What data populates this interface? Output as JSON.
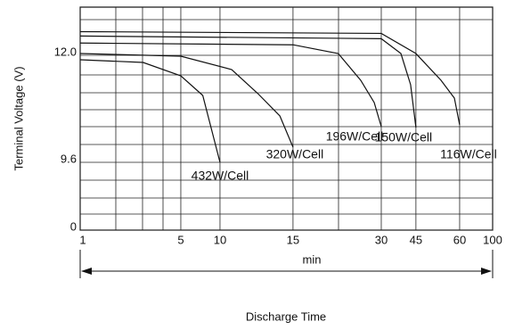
{
  "chart_data": {
    "type": "line",
    "y_label": "Terminal Voltage (V)",
    "x_label": "Discharge Time",
    "x_unit": "min",
    "xlim": [
      1,
      100
    ],
    "xticks": [
      1,
      5,
      10,
      15,
      30,
      45,
      60,
      100
    ],
    "ylim": [
      0,
      13.1
    ],
    "yticks": [
      0,
      9.6,
      {
        "value": 12.0,
        "label": "12.0"
      }
    ],
    "grid": true,
    "series": [
      {
        "name": "432W/Cell",
        "color": "#111111",
        "x": [
          1,
          3.5,
          5,
          7.8,
          10
        ],
        "values": [
          11.9,
          11.84,
          11.54,
          11.1,
          9.6
        ]
      },
      {
        "name": "320W/Cell",
        "color": "#111111",
        "x": [
          1,
          5,
          10.8,
          12.6,
          14.1,
          15
        ],
        "values": [
          12.04,
          11.98,
          11.68,
          11.14,
          10.64,
          9.94
        ]
      },
      {
        "name": "196W/Cell",
        "color": "#111111",
        "x": [
          1,
          15,
          22.7,
          26.5,
          28.8,
          30
        ],
        "values": [
          12.28,
          12.24,
          12.04,
          11.44,
          10.94,
          10.4
        ]
      },
      {
        "name": "150W/Cell",
        "color": "#111111",
        "x": [
          1,
          30,
          38.5,
          42.7,
          45
        ],
        "values": [
          12.44,
          12.38,
          12.04,
          11.34,
          10.38
        ]
      },
      {
        "name": "116W/Cell",
        "color": "#111111",
        "x": [
          1,
          30,
          45,
          53.6,
          58.2,
          60
        ],
        "values": [
          12.54,
          12.5,
          12.04,
          11.44,
          11.04,
          10.44
        ]
      }
    ]
  }
}
